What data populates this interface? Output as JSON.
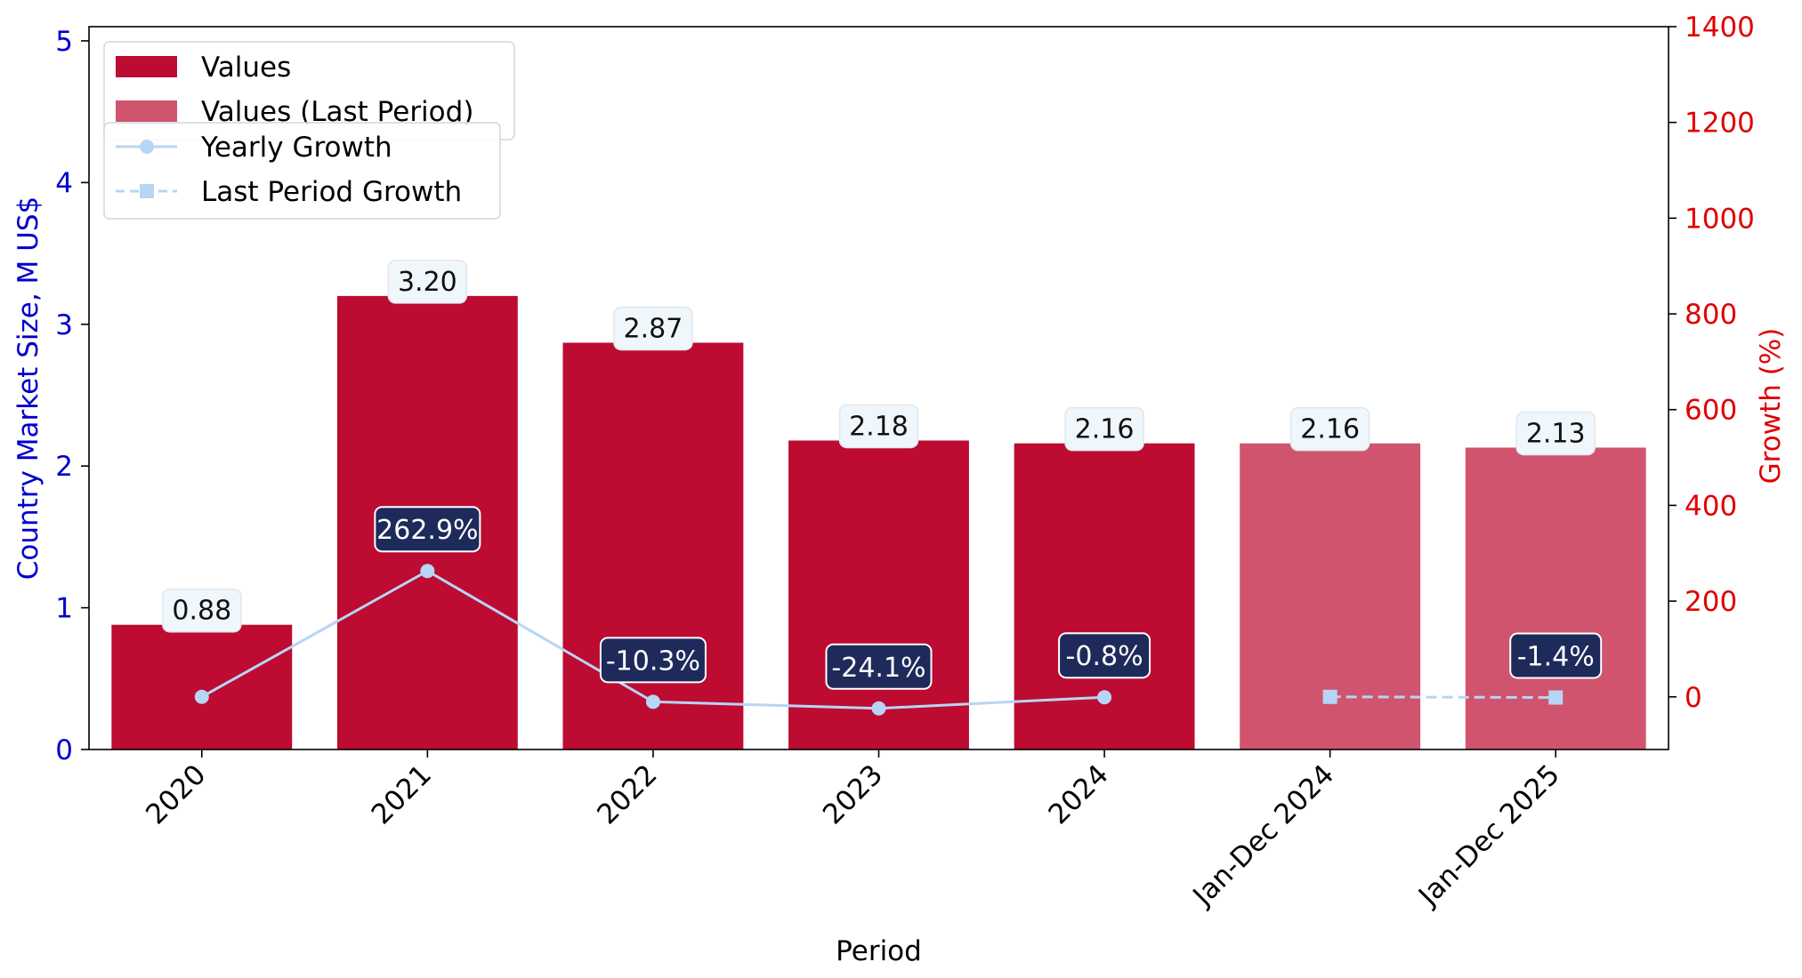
{
  "chart_data": {
    "type": "bar",
    "categories": [
      "2020",
      "2021",
      "2022",
      "2023",
      "2024",
      "Jan-Dec 2024",
      "Jan-Dec 2025"
    ],
    "xlabel": "Period",
    "ylabel": "Country Market Size, M US$",
    "y2label": "Growth (%)",
    "ylim": [
      0,
      5.1
    ],
    "y2lim": [
      -110,
      1400
    ],
    "yticks": [
      0,
      1,
      2,
      3,
      4,
      5
    ],
    "y2ticks": [
      0,
      200,
      400,
      600,
      800,
      1000,
      1200,
      1400
    ],
    "legend_placement": "top-left",
    "series": [
      {
        "name": "Values",
        "kind": "bar",
        "color": "#bd0b31",
        "values": [
          0.88,
          3.2,
          2.87,
          2.18,
          2.16,
          null,
          null
        ],
        "labels": [
          "0.88",
          "3.20",
          "2.87",
          "2.18",
          "2.16",
          null,
          null
        ]
      },
      {
        "name": "Values (Last Period)",
        "kind": "bar",
        "color": "#d0546d",
        "values": [
          null,
          null,
          null,
          null,
          null,
          2.16,
          2.13
        ],
        "labels": [
          null,
          null,
          null,
          null,
          null,
          "2.16",
          "2.13"
        ]
      },
      {
        "name": "Yearly Growth",
        "kind": "line",
        "axis": "right",
        "color": "#b7d5f5",
        "marker": "circle",
        "values": [
          0,
          262.9,
          -10.3,
          -24.1,
          -0.8,
          null,
          null
        ],
        "labels": [
          null,
          "262.9%",
          "-10.3%",
          "-24.1%",
          "-0.8%",
          null,
          null
        ]
      },
      {
        "name": "Last Period Growth",
        "kind": "line",
        "axis": "right",
        "color": "#b7d5f5",
        "marker": "square",
        "dashed": true,
        "values": [
          null,
          null,
          null,
          null,
          null,
          0,
          -1.4
        ],
        "labels": [
          null,
          null,
          null,
          null,
          null,
          null,
          "-1.4%"
        ]
      }
    ],
    "colors": {
      "left_axis": "#0000cc",
      "right_axis": "#e00000",
      "growth_label_bg": "#1e2a5a",
      "value_label_bg": "#f0f7fc"
    }
  }
}
